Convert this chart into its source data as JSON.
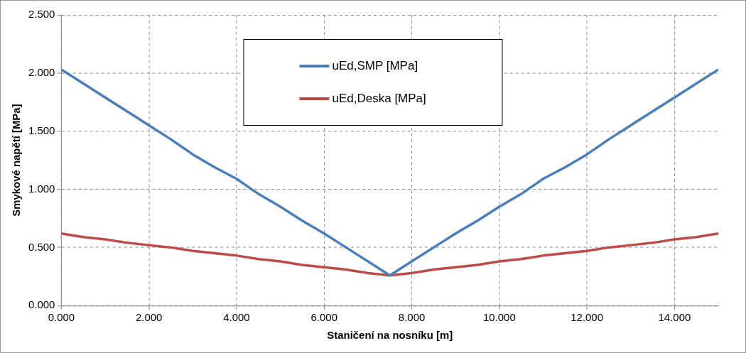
{
  "chart_data": {
    "type": "line",
    "xlabel": "Staničení na nosníku [m]",
    "ylabel": "Smykové napětí [MPa]",
    "x": [
      0,
      0.5,
      1,
      1.5,
      2,
      2.5,
      3,
      3.5,
      4,
      4.5,
      5,
      5.5,
      6,
      6.5,
      7,
      7.5,
      8,
      8.5,
      9,
      9.5,
      10,
      10.5,
      11,
      11.5,
      12,
      12.5,
      13,
      13.5,
      14,
      14.5,
      15
    ],
    "series": [
      {
        "name": "uEd,SMP [MPa]",
        "color": "#4a7ebb",
        "values": [
          2.03,
          1.91,
          1.79,
          1.67,
          1.55,
          1.43,
          1.3,
          1.19,
          1.09,
          0.96,
          0.85,
          0.73,
          0.62,
          0.5,
          0.38,
          0.26,
          0.38,
          0.5,
          0.62,
          0.73,
          0.85,
          0.96,
          1.09,
          1.19,
          1.3,
          1.43,
          1.55,
          1.67,
          1.79,
          1.91,
          2.03
        ]
      },
      {
        "name": "uEd,Deska [MPa]",
        "color": "#be4b48",
        "values": [
          0.62,
          0.59,
          0.57,
          0.54,
          0.52,
          0.5,
          0.47,
          0.45,
          0.43,
          0.4,
          0.38,
          0.35,
          0.33,
          0.31,
          0.28,
          0.26,
          0.28,
          0.31,
          0.33,
          0.35,
          0.38,
          0.4,
          0.43,
          0.45,
          0.47,
          0.5,
          0.52,
          0.54,
          0.57,
          0.59,
          0.62
        ]
      }
    ],
    "xlim": [
      0,
      15
    ],
    "xticks": [
      {
        "value": 0,
        "label": "0.000"
      },
      {
        "value": 2,
        "label": "2.000"
      },
      {
        "value": 4,
        "label": "4.000"
      },
      {
        "value": 6,
        "label": "6.000"
      },
      {
        "value": 8,
        "label": "8.000"
      },
      {
        "value": 10,
        "label": "10.000"
      },
      {
        "value": 12,
        "label": "12.000"
      },
      {
        "value": 14,
        "label": "14.000"
      }
    ],
    "ylim": [
      0,
      2.5
    ],
    "yticks": [
      {
        "value": 0,
        "label": "0.000"
      },
      {
        "value": 0.5,
        "label": "0.500"
      },
      {
        "value": 1,
        "label": "1.000"
      },
      {
        "value": 1.5,
        "label": "1.500"
      },
      {
        "value": 2,
        "label": "2.000"
      },
      {
        "value": 2.5,
        "label": "2.500"
      }
    ],
    "grid": true,
    "legend": "top",
    "marker": "none",
    "line_style": "solid"
  }
}
